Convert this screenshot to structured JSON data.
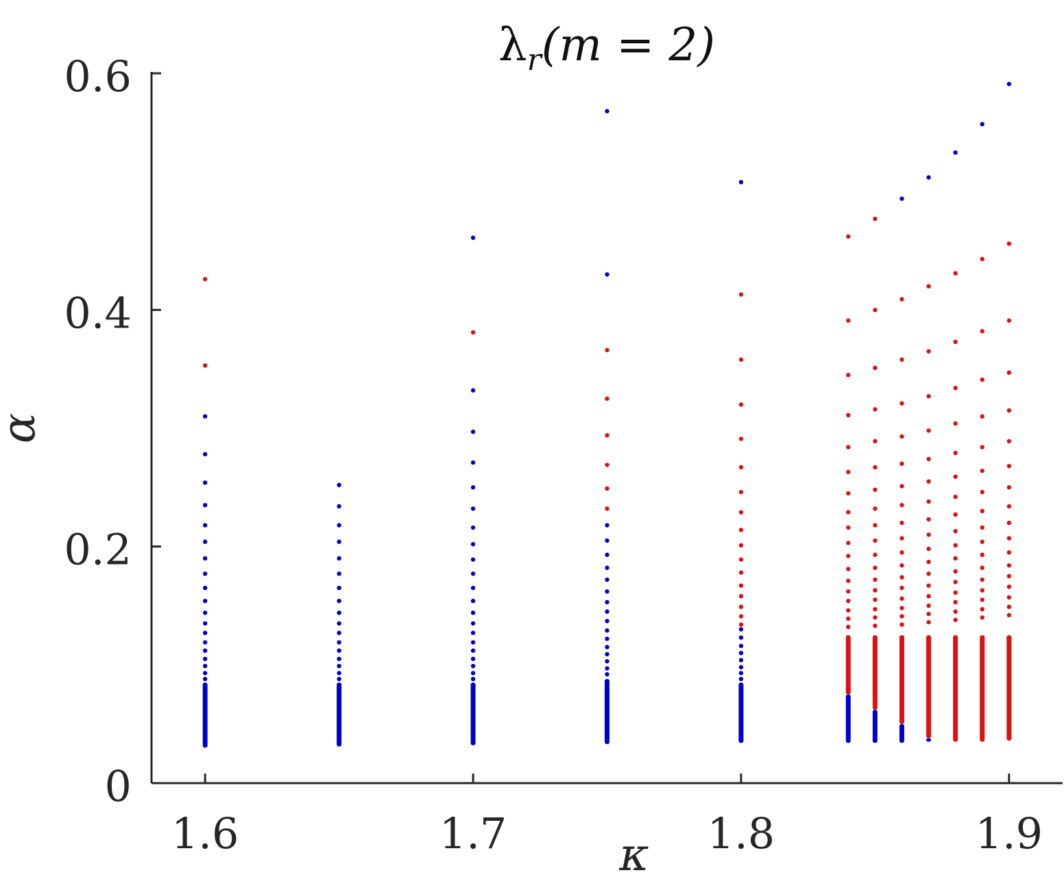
{
  "chart_data": {
    "type": "scatter",
    "title": "λ_r(m = 2)",
    "title_parts": {
      "main": "λ",
      "sub": "r",
      "args": "(m = 2)"
    },
    "xlabel": "κ",
    "ylabel": "α",
    "xlim": [
      1.58,
      1.92
    ],
    "ylim": [
      0,
      0.6
    ],
    "xticks": [
      "1.6",
      "1.7",
      "1.8",
      "1.9"
    ],
    "xtick_values": [
      1.6,
      1.7,
      1.8,
      1.9
    ],
    "yticks": [
      "0",
      "0.2",
      "0.4",
      "0.6"
    ],
    "ytick_values": [
      0,
      0.2,
      0.4,
      0.6
    ],
    "grid": false,
    "colors": {
      "blue": "#0000cc",
      "red": "#dd1111",
      "axis": "#262626"
    },
    "columns": [
      {
        "x": 1.6,
        "min": 0.03,
        "dense_top": 0.085,
        "blue": [
          0.31,
          0.278,
          0.254,
          0.235,
          0.218,
          0.204,
          0.19,
          0.177,
          0.165,
          0.154,
          0.144,
          0.135,
          0.127,
          0.119,
          0.112,
          0.105,
          0.099,
          0.093,
          0.088
        ],
        "red": [
          0.426,
          0.353
        ],
        "dense_color": "blue"
      },
      {
        "x": 1.65,
        "min": 0.031,
        "dense_top": 0.085,
        "blue": [
          0.252,
          0.234,
          0.218,
          0.204,
          0.19,
          0.177,
          0.165,
          0.154,
          0.144,
          0.135,
          0.127,
          0.119,
          0.112,
          0.105,
          0.099,
          0.093,
          0.088
        ],
        "red": [],
        "dense_color": "blue"
      },
      {
        "x": 1.7,
        "min": 0.032,
        "dense_top": 0.085,
        "blue": [
          0.461,
          0.332,
          0.297,
          0.271,
          0.25,
          0.232,
          0.216,
          0.202,
          0.189,
          0.177,
          0.165,
          0.154,
          0.144,
          0.135,
          0.127,
          0.119,
          0.112,
          0.105,
          0.099,
          0.093,
          0.088
        ],
        "red": [
          0.381
        ],
        "dense_color": "blue"
      },
      {
        "x": 1.75,
        "min": 0.033,
        "dense_top": 0.088,
        "blue": [
          0.568,
          0.43,
          0.218,
          0.205,
          0.193,
          0.182,
          0.172,
          0.162,
          0.153,
          0.145,
          0.137,
          0.129,
          0.122,
          0.115,
          0.109,
          0.103,
          0.097,
          0.092
        ],
        "red": [
          0.366,
          0.325,
          0.294,
          0.269,
          0.249,
          0.232
        ],
        "dense_color": "blue"
      },
      {
        "x": 1.8,
        "min": 0.034,
        "dense_top": 0.085,
        "blue": [
          0.508,
          0.13,
          0.123,
          0.116,
          0.11,
          0.104,
          0.098,
          0.093,
          0.088
        ],
        "red": [
          0.413,
          0.358,
          0.32,
          0.291,
          0.267,
          0.246,
          0.229,
          0.214,
          0.201,
          0.189,
          0.178,
          0.167,
          0.158,
          0.149,
          0.141,
          0.134
        ],
        "dense_color": "blue"
      },
      {
        "x": 1.84,
        "min": 0.034,
        "dense_top": 0.125,
        "split": 0.075,
        "blue": [],
        "red": [
          0.462,
          0.391,
          0.345,
          0.311,
          0.284,
          0.263,
          0.245,
          0.229,
          0.216,
          0.203,
          0.192,
          0.181,
          0.171,
          0.162,
          0.154,
          0.146,
          0.139,
          0.132
        ],
        "dense_color": "red"
      },
      {
        "x": 1.85,
        "min": 0.034,
        "dense_top": 0.125,
        "split": 0.062,
        "blue": [],
        "red": [
          0.477,
          0.4,
          0.351,
          0.316,
          0.289,
          0.267,
          0.248,
          0.232,
          0.218,
          0.205,
          0.193,
          0.182,
          0.172,
          0.163,
          0.155,
          0.147,
          0.14,
          0.133
        ],
        "dense_color": "red"
      },
      {
        "x": 1.86,
        "min": 0.034,
        "dense_top": 0.125,
        "split": 0.05,
        "blue": [
          0.494
        ],
        "red": [
          0.409,
          0.358,
          0.321,
          0.293,
          0.27,
          0.251,
          0.235,
          0.22,
          0.207,
          0.195,
          0.184,
          0.174,
          0.165,
          0.156,
          0.148,
          0.141,
          0.134
        ],
        "dense_color": "red"
      },
      {
        "x": 1.87,
        "min": 0.035,
        "dense_top": 0.125,
        "split": 0.038,
        "blue": [
          0.512
        ],
        "red": [
          0.42,
          0.365,
          0.327,
          0.298,
          0.274,
          0.255,
          0.238,
          0.223,
          0.21,
          0.198,
          0.187,
          0.177,
          0.167,
          0.158,
          0.15,
          0.143,
          0.136
        ],
        "dense_color": "red"
      },
      {
        "x": 1.88,
        "min": 0.035,
        "dense_top": 0.125,
        "blue": [
          0.533
        ],
        "red": [
          0.431,
          0.373,
          0.334,
          0.304,
          0.279,
          0.259,
          0.242,
          0.227,
          0.213,
          0.201,
          0.19,
          0.179,
          0.17,
          0.161,
          0.153,
          0.145,
          0.138
        ],
        "dense_color": "red"
      },
      {
        "x": 1.89,
        "min": 0.035,
        "dense_top": 0.125,
        "blue": [
          0.557
        ],
        "red": [
          0.443,
          0.382,
          0.341,
          0.31,
          0.284,
          0.264,
          0.246,
          0.23,
          0.216,
          0.204,
          0.193,
          0.182,
          0.172,
          0.163,
          0.155,
          0.147,
          0.14
        ],
        "dense_color": "red"
      },
      {
        "x": 1.9,
        "min": 0.036,
        "dense_top": 0.125,
        "blue": [
          0.591
        ],
        "red": [
          0.456,
          0.391,
          0.347,
          0.315,
          0.289,
          0.268,
          0.25,
          0.234,
          0.22,
          0.207,
          0.195,
          0.184,
          0.175,
          0.166,
          0.157,
          0.149,
          0.142
        ],
        "dense_color": "red"
      }
    ]
  }
}
